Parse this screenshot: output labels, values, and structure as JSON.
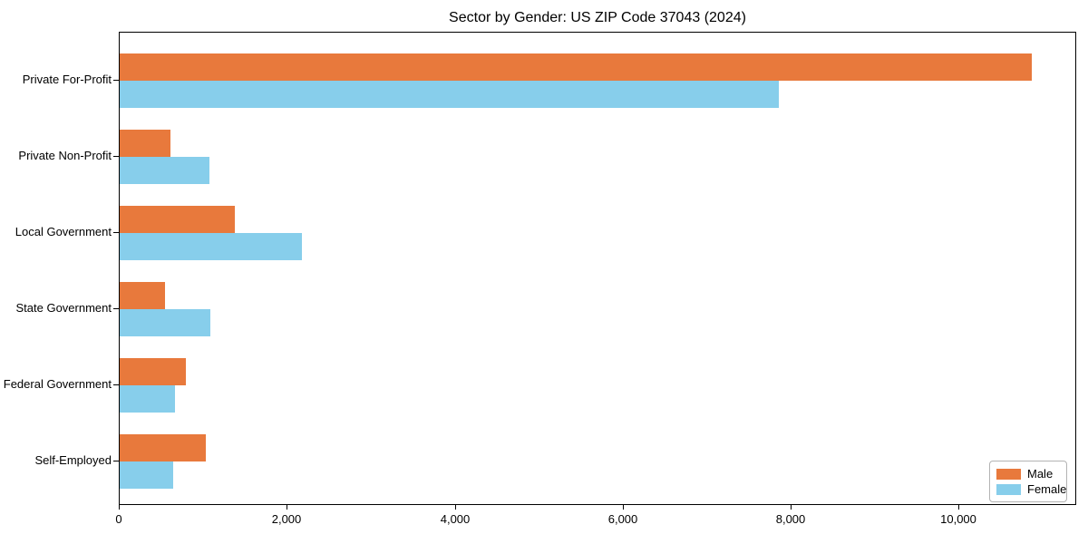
{
  "title": "Sector by Gender: US ZIP Code 37043 (2024)",
  "colors": {
    "male": "#E8793C",
    "female": "#87CEEB",
    "spine": "#000000",
    "background": "#FFFFFF",
    "legend_border": "#B3B3B3"
  },
  "chart_data": {
    "type": "bar",
    "orientation": "horizontal",
    "title": "Sector by Gender: US ZIP Code 37043 (2024)",
    "categories": [
      "Private For-Profit",
      "Private Non-Profit",
      "Local Government",
      "State Government",
      "Federal Government",
      "Self-Employed"
    ],
    "series": [
      {
        "name": "Male",
        "color": "#E8793C",
        "values": [
          10860,
          605,
          1370,
          540,
          790,
          1030
        ]
      },
      {
        "name": "Female",
        "color": "#87CEEB",
        "values": [
          7845,
          1070,
          2170,
          1080,
          660,
          640
        ]
      }
    ],
    "xlabel": "",
    "ylabel": "",
    "xlim": [
      0,
      11400
    ],
    "xticks": [
      0,
      2000,
      4000,
      6000,
      8000,
      10000
    ],
    "xtick_labels": [
      "0",
      "2,000",
      "4,000",
      "6,000",
      "8,000",
      "10,000"
    ],
    "grid": false,
    "legend": {
      "position": "lower right",
      "entries": [
        "Male",
        "Female"
      ]
    }
  }
}
